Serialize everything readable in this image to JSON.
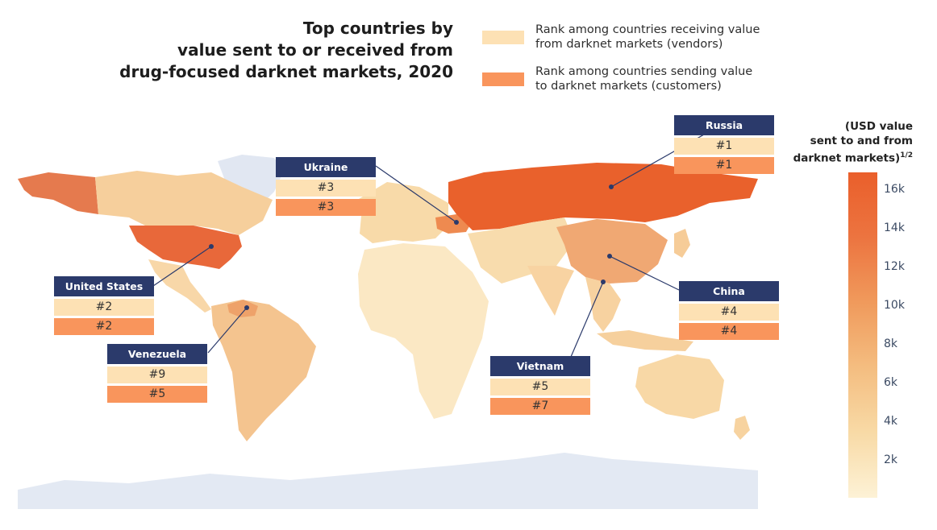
{
  "title": {
    "line1": "Top countries by",
    "line2": "value sent to or received from",
    "line3": "drug-focused darknet markets, 2020"
  },
  "legend": {
    "vendors": {
      "line1": "Rank among countries receiving value",
      "line2": "from darknet markets (vendors)",
      "color": "#fde1b4"
    },
    "customers": {
      "line1": "Rank among countries sending value",
      "line2": "to darknet markets (customers)",
      "color": "#f9955c"
    }
  },
  "callouts": [
    {
      "country": "Russia",
      "vendor_rank": "#1",
      "customer_rank": "#1"
    },
    {
      "country": "Ukraine",
      "vendor_rank": "#3",
      "customer_rank": "#3"
    },
    {
      "country": "United States",
      "vendor_rank": "#2",
      "customer_rank": "#2"
    },
    {
      "country": "China",
      "vendor_rank": "#4",
      "customer_rank": "#4"
    },
    {
      "country": "Venezuela",
      "vendor_rank": "#9",
      "customer_rank": "#5"
    },
    {
      "country": "Vietnam",
      "vendor_rank": "#5",
      "customer_rank": "#7"
    }
  ],
  "color_scale": {
    "title_line1": "(USD value",
    "title_line2": "sent to and from",
    "title_line3": "darknet markets)",
    "title_exponent": "1/2",
    "ticks": [
      "16k",
      "14k",
      "12k",
      "10k",
      "8k",
      "6k",
      "4k",
      "2k"
    ],
    "color_high": "#ea5f2b",
    "color_low": "#fdf2d6"
  },
  "colors": {
    "label_header": "#2b3a6b",
    "no_data": "#dfe6f2",
    "leader_line": "#2b3a6b"
  }
}
